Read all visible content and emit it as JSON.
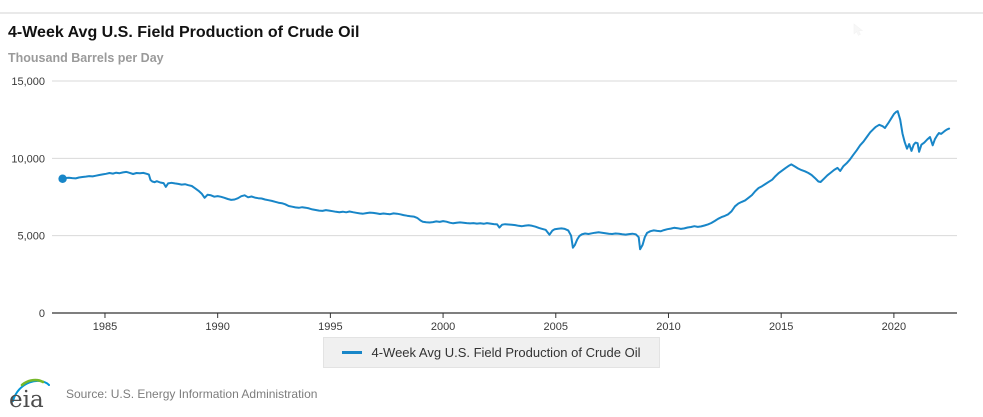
{
  "header": {
    "title": "4-Week Avg U.S. Field Production of Crude Oil",
    "units_label": "Thousand Barrels per Day"
  },
  "legend": {
    "label": "4-Week Avg U.S. Field Production of Crude Oil"
  },
  "footer": {
    "logo_text": "eia",
    "source": "Source: U.S. Energy Information Administration"
  },
  "colors": {
    "series_blue": "#1886c8",
    "gridline": "#d9d9d9",
    "axis": "#333333",
    "eia_green": "#76b82a",
    "eia_blue": "#0096d7"
  },
  "chart_data": {
    "type": "line",
    "title": "4-Week Avg U.S. Field Production of Crude Oil",
    "xlabel": "",
    "ylabel": "Thousand Barrels per Day",
    "xlim": [
      1982.65,
      2022.8
    ],
    "ylim": [
      0,
      15000
    ],
    "grid": "horizontal",
    "legend_position": "bottom",
    "y_ticks": [
      {
        "value": 0,
        "label": "0"
      },
      {
        "value": 5000,
        "label": "5,000"
      },
      {
        "value": 10000,
        "label": "10,000"
      },
      {
        "value": 15000,
        "label": "15,000"
      }
    ],
    "x_ticks": [
      {
        "value": 1985,
        "label": "1985"
      },
      {
        "value": 1990,
        "label": "1990"
      },
      {
        "value": 1995,
        "label": "1995"
      },
      {
        "value": 2000,
        "label": "2000"
      },
      {
        "value": 2005,
        "label": "2005"
      },
      {
        "value": 2010,
        "label": "2010"
      },
      {
        "value": 2015,
        "label": "2015"
      },
      {
        "value": 2020,
        "label": "2020"
      }
    ],
    "series": [
      {
        "name": "4-Week Avg U.S. Field Production of Crude Oil",
        "color": "#1886c8",
        "first_point_marker": true,
        "points": [
          [
            1983.12,
            8680
          ],
          [
            1983.25,
            8730
          ],
          [
            1983.4,
            8750
          ],
          [
            1983.55,
            8720
          ],
          [
            1983.7,
            8700
          ],
          [
            1983.85,
            8760
          ],
          [
            1984.0,
            8790
          ],
          [
            1984.15,
            8820
          ],
          [
            1984.3,
            8850
          ],
          [
            1984.45,
            8830
          ],
          [
            1984.6,
            8880
          ],
          [
            1984.75,
            8920
          ],
          [
            1984.9,
            8960
          ],
          [
            1985.05,
            9000
          ],
          [
            1985.2,
            9050
          ],
          [
            1985.35,
            9010
          ],
          [
            1985.5,
            9070
          ],
          [
            1985.65,
            9040
          ],
          [
            1985.8,
            9090
          ],
          [
            1985.95,
            9120
          ],
          [
            1986.1,
            9060
          ],
          [
            1986.25,
            8990
          ],
          [
            1986.4,
            9050
          ],
          [
            1986.55,
            9030
          ],
          [
            1986.7,
            9060
          ],
          [
            1986.85,
            9000
          ],
          [
            1986.95,
            8950
          ],
          [
            1987.02,
            8600
          ],
          [
            1987.1,
            8500
          ],
          [
            1987.2,
            8460
          ],
          [
            1987.3,
            8520
          ],
          [
            1987.45,
            8440
          ],
          [
            1987.6,
            8400
          ],
          [
            1987.7,
            8150
          ],
          [
            1987.8,
            8380
          ],
          [
            1987.95,
            8420
          ],
          [
            1988.1,
            8380
          ],
          [
            1988.25,
            8350
          ],
          [
            1988.4,
            8300
          ],
          [
            1988.55,
            8330
          ],
          [
            1988.7,
            8260
          ],
          [
            1988.85,
            8210
          ],
          [
            1989.0,
            8060
          ],
          [
            1989.15,
            7900
          ],
          [
            1989.3,
            7700
          ],
          [
            1989.42,
            7450
          ],
          [
            1989.55,
            7640
          ],
          [
            1989.7,
            7610
          ],
          [
            1989.85,
            7520
          ],
          [
            1990.0,
            7560
          ],
          [
            1990.15,
            7510
          ],
          [
            1990.3,
            7450
          ],
          [
            1990.45,
            7370
          ],
          [
            1990.6,
            7310
          ],
          [
            1990.75,
            7340
          ],
          [
            1990.9,
            7420
          ],
          [
            1991.05,
            7550
          ],
          [
            1991.2,
            7610
          ],
          [
            1991.35,
            7480
          ],
          [
            1991.5,
            7530
          ],
          [
            1991.65,
            7460
          ],
          [
            1991.8,
            7420
          ],
          [
            1991.95,
            7400
          ],
          [
            1992.1,
            7340
          ],
          [
            1992.25,
            7290
          ],
          [
            1992.4,
            7250
          ],
          [
            1992.55,
            7190
          ],
          [
            1992.7,
            7130
          ],
          [
            1992.85,
            7100
          ],
          [
            1993.0,
            7030
          ],
          [
            1993.15,
            6920
          ],
          [
            1993.3,
            6870
          ],
          [
            1993.45,
            6830
          ],
          [
            1993.6,
            6800
          ],
          [
            1993.75,
            6840
          ],
          [
            1993.9,
            6810
          ],
          [
            1994.05,
            6760
          ],
          [
            1994.2,
            6700
          ],
          [
            1994.35,
            6660
          ],
          [
            1994.5,
            6620
          ],
          [
            1994.65,
            6600
          ],
          [
            1994.8,
            6650
          ],
          [
            1994.95,
            6620
          ],
          [
            1995.1,
            6580
          ],
          [
            1995.25,
            6540
          ],
          [
            1995.4,
            6520
          ],
          [
            1995.55,
            6550
          ],
          [
            1995.7,
            6510
          ],
          [
            1995.85,
            6560
          ],
          [
            1996.0,
            6520
          ],
          [
            1996.15,
            6480
          ],
          [
            1996.3,
            6440
          ],
          [
            1996.45,
            6420
          ],
          [
            1996.6,
            6460
          ],
          [
            1996.75,
            6490
          ],
          [
            1996.9,
            6470
          ],
          [
            1997.05,
            6440
          ],
          [
            1997.2,
            6400
          ],
          [
            1997.35,
            6430
          ],
          [
            1997.5,
            6410
          ],
          [
            1997.65,
            6390
          ],
          [
            1997.8,
            6440
          ],
          [
            1997.95,
            6420
          ],
          [
            1998.1,
            6380
          ],
          [
            1998.25,
            6330
          ],
          [
            1998.4,
            6290
          ],
          [
            1998.55,
            6260
          ],
          [
            1998.7,
            6230
          ],
          [
            1998.85,
            6150
          ],
          [
            1999.0,
            5980
          ],
          [
            1999.1,
            5900
          ],
          [
            1999.25,
            5870
          ],
          [
            1999.4,
            5850
          ],
          [
            1999.55,
            5880
          ],
          [
            1999.7,
            5920
          ],
          [
            1999.85,
            5890
          ],
          [
            2000.0,
            5940
          ],
          [
            2000.15,
            5900
          ],
          [
            2000.3,
            5840
          ],
          [
            2000.45,
            5800
          ],
          [
            2000.6,
            5830
          ],
          [
            2000.75,
            5860
          ],
          [
            2000.9,
            5840
          ],
          [
            2001.05,
            5810
          ],
          [
            2001.2,
            5790
          ],
          [
            2001.35,
            5810
          ],
          [
            2001.5,
            5780
          ],
          [
            2001.65,
            5800
          ],
          [
            2001.8,
            5770
          ],
          [
            2001.95,
            5810
          ],
          [
            2002.1,
            5780
          ],
          [
            2002.25,
            5750
          ],
          [
            2002.4,
            5730
          ],
          [
            2002.5,
            5520
          ],
          [
            2002.62,
            5710
          ],
          [
            2002.75,
            5740
          ],
          [
            2002.9,
            5720
          ],
          [
            2003.05,
            5700
          ],
          [
            2003.2,
            5680
          ],
          [
            2003.35,
            5640
          ],
          [
            2003.5,
            5610
          ],
          [
            2003.65,
            5650
          ],
          [
            2003.8,
            5670
          ],
          [
            2003.95,
            5640
          ],
          [
            2004.1,
            5580
          ],
          [
            2004.25,
            5500
          ],
          [
            2004.4,
            5440
          ],
          [
            2004.55,
            5380
          ],
          [
            2004.72,
            5060
          ],
          [
            2004.85,
            5330
          ],
          [
            2004.95,
            5420
          ],
          [
            2005.1,
            5450
          ],
          [
            2005.25,
            5470
          ],
          [
            2005.4,
            5440
          ],
          [
            2005.55,
            5340
          ],
          [
            2005.68,
            5000
          ],
          [
            2005.76,
            4220
          ],
          [
            2005.85,
            4400
          ],
          [
            2005.95,
            4750
          ],
          [
            2006.05,
            4980
          ],
          [
            2006.15,
            5080
          ],
          [
            2006.3,
            5140
          ],
          [
            2006.45,
            5110
          ],
          [
            2006.6,
            5150
          ],
          [
            2006.75,
            5190
          ],
          [
            2006.9,
            5220
          ],
          [
            2007.05,
            5190
          ],
          [
            2007.2,
            5160
          ],
          [
            2007.35,
            5130
          ],
          [
            2007.5,
            5110
          ],
          [
            2007.65,
            5140
          ],
          [
            2007.8,
            5120
          ],
          [
            2007.95,
            5090
          ],
          [
            2008.1,
            5070
          ],
          [
            2008.25,
            5100
          ],
          [
            2008.4,
            5130
          ],
          [
            2008.55,
            5090
          ],
          [
            2008.68,
            4900
          ],
          [
            2008.74,
            4120
          ],
          [
            2008.85,
            4400
          ],
          [
            2008.95,
            4900
          ],
          [
            2009.05,
            5180
          ],
          [
            2009.2,
            5290
          ],
          [
            2009.35,
            5340
          ],
          [
            2009.5,
            5310
          ],
          [
            2009.65,
            5280
          ],
          [
            2009.8,
            5360
          ],
          [
            2009.95,
            5420
          ],
          [
            2010.1,
            5460
          ],
          [
            2010.25,
            5510
          ],
          [
            2010.4,
            5480
          ],
          [
            2010.55,
            5440
          ],
          [
            2010.7,
            5470
          ],
          [
            2010.85,
            5530
          ],
          [
            2011.0,
            5560
          ],
          [
            2011.15,
            5610
          ],
          [
            2011.3,
            5570
          ],
          [
            2011.45,
            5600
          ],
          [
            2011.6,
            5660
          ],
          [
            2011.75,
            5730
          ],
          [
            2011.9,
            5820
          ],
          [
            2012.05,
            5950
          ],
          [
            2012.2,
            6090
          ],
          [
            2012.35,
            6200
          ],
          [
            2012.5,
            6280
          ],
          [
            2012.65,
            6380
          ],
          [
            2012.8,
            6580
          ],
          [
            2012.95,
            6900
          ],
          [
            2013.1,
            7080
          ],
          [
            2013.25,
            7180
          ],
          [
            2013.4,
            7280
          ],
          [
            2013.55,
            7450
          ],
          [
            2013.7,
            7620
          ],
          [
            2013.85,
            7880
          ],
          [
            2014.0,
            8080
          ],
          [
            2014.15,
            8200
          ],
          [
            2014.3,
            8340
          ],
          [
            2014.45,
            8480
          ],
          [
            2014.6,
            8620
          ],
          [
            2014.75,
            8850
          ],
          [
            2014.9,
            9060
          ],
          [
            2015.05,
            9220
          ],
          [
            2015.2,
            9380
          ],
          [
            2015.35,
            9530
          ],
          [
            2015.45,
            9610
          ],
          [
            2015.6,
            9480
          ],
          [
            2015.75,
            9340
          ],
          [
            2015.9,
            9240
          ],
          [
            2016.05,
            9160
          ],
          [
            2016.2,
            9060
          ],
          [
            2016.35,
            8920
          ],
          [
            2016.5,
            8720
          ],
          [
            2016.65,
            8500
          ],
          [
            2016.75,
            8470
          ],
          [
            2016.9,
            8680
          ],
          [
            2017.05,
            8900
          ],
          [
            2017.2,
            9080
          ],
          [
            2017.35,
            9250
          ],
          [
            2017.5,
            9380
          ],
          [
            2017.62,
            9180
          ],
          [
            2017.75,
            9480
          ],
          [
            2017.9,
            9680
          ],
          [
            2018.05,
            9920
          ],
          [
            2018.2,
            10230
          ],
          [
            2018.35,
            10520
          ],
          [
            2018.5,
            10840
          ],
          [
            2018.65,
            11080
          ],
          [
            2018.8,
            11380
          ],
          [
            2018.95,
            11680
          ],
          [
            2019.1,
            11900
          ],
          [
            2019.2,
            12040
          ],
          [
            2019.35,
            12170
          ],
          [
            2019.5,
            12080
          ],
          [
            2019.6,
            11960
          ],
          [
            2019.75,
            12280
          ],
          [
            2019.9,
            12620
          ],
          [
            2020.0,
            12860
          ],
          [
            2020.1,
            13000
          ],
          [
            2020.17,
            13050
          ],
          [
            2020.28,
            12500
          ],
          [
            2020.38,
            11600
          ],
          [
            2020.48,
            11050
          ],
          [
            2020.58,
            10620
          ],
          [
            2020.68,
            10920
          ],
          [
            2020.78,
            10480
          ],
          [
            2020.88,
            10880
          ],
          [
            2020.96,
            11020
          ],
          [
            2021.05,
            10980
          ],
          [
            2021.12,
            10420
          ],
          [
            2021.22,
            10880
          ],
          [
            2021.35,
            11020
          ],
          [
            2021.48,
            11220
          ],
          [
            2021.6,
            11380
          ],
          [
            2021.72,
            10840
          ],
          [
            2021.82,
            11240
          ],
          [
            2021.92,
            11480
          ],
          [
            2022.0,
            11640
          ],
          [
            2022.1,
            11580
          ],
          [
            2022.2,
            11700
          ],
          [
            2022.28,
            11790
          ],
          [
            2022.36,
            11870
          ],
          [
            2022.45,
            11920
          ]
        ]
      }
    ]
  }
}
